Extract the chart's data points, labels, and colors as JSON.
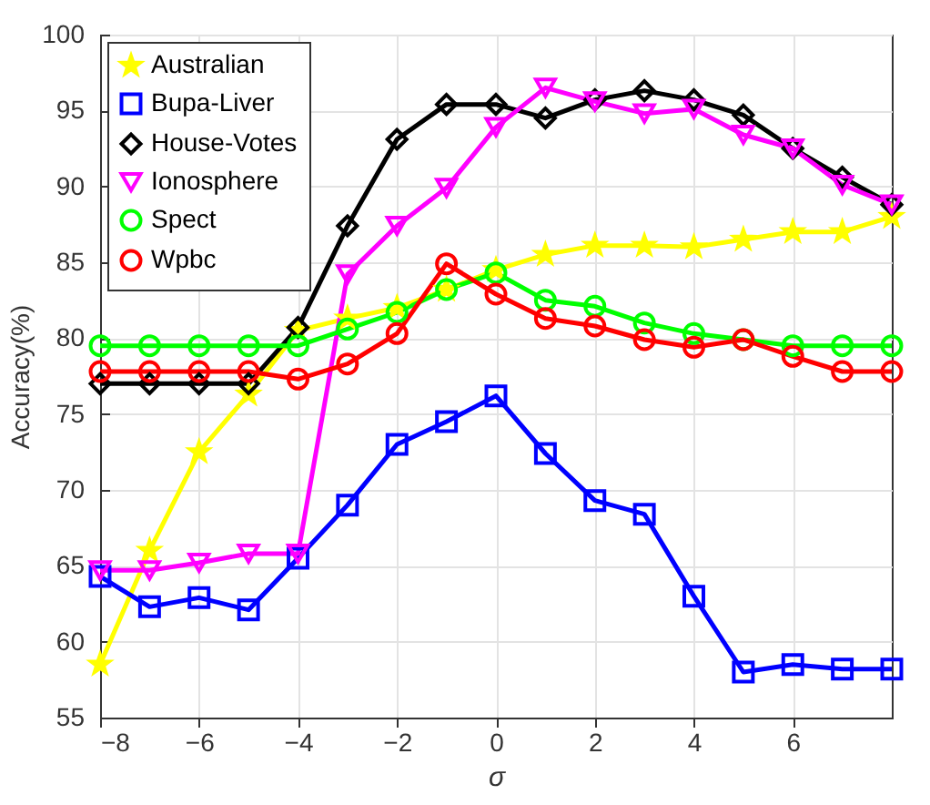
{
  "chart_data": {
    "type": "line",
    "xlabel": "σ",
    "ylabel": "Accuracy(%)",
    "x": [
      -8,
      -7,
      -6,
      -5,
      -4,
      -3,
      -2,
      -1,
      0,
      1,
      2,
      3,
      4,
      5,
      6,
      7,
      8
    ],
    "xlim": [
      -8,
      8
    ],
    "xticks": [
      -8,
      -6,
      -4,
      -2,
      0,
      2,
      4,
      6
    ],
    "ylim": [
      55,
      100
    ],
    "yticks": [
      55,
      60,
      65,
      70,
      75,
      80,
      85,
      90,
      95,
      100
    ],
    "grid": true,
    "legend": "top left",
    "line_style": "solid",
    "series": [
      {
        "name": "Australian",
        "color": "#ffff00",
        "marker": "star",
        "values": [
          58.5,
          66,
          72.5,
          76.3,
          80.5,
          81.3,
          82,
          83.2,
          84.5,
          85.5,
          86.1,
          86.1,
          86,
          86.5,
          87,
          87,
          88
        ]
      },
      {
        "name": "Bupa-Liver",
        "color": "#0000ff",
        "marker": "square",
        "values": [
          64.3,
          62.3,
          62.9,
          62.1,
          65.5,
          69,
          73,
          74.5,
          76.2,
          72.4,
          69.3,
          68.4,
          63,
          58,
          58.5,
          58.2,
          58.2
        ]
      },
      {
        "name": "House-Votes",
        "color": "#000000",
        "marker": "diamond",
        "values": [
          77,
          77,
          77,
          77,
          80.7,
          87.4,
          93.1,
          95.4,
          95.4,
          94.5,
          95.7,
          96.3,
          95.7,
          94.7,
          92.5,
          90.6,
          88.8
        ]
      },
      {
        "name": "Ionosphere",
        "color": "#ff00ff",
        "marker": "triangle",
        "values": [
          64.7,
          64.7,
          65.2,
          65.8,
          65.8,
          84.2,
          87.4,
          89.9,
          93.9,
          96.5,
          95.6,
          94.8,
          95.1,
          93.4,
          92.5,
          90.1,
          88.8
        ]
      },
      {
        "name": "Spect",
        "color": "#00ff00",
        "marker": "circle",
        "values": [
          79.5,
          79.5,
          79.5,
          79.5,
          79.5,
          80.6,
          81.7,
          83.2,
          84.3,
          82.5,
          82.1,
          81,
          80.3,
          79.9,
          79.5,
          79.5,
          79.5
        ]
      },
      {
        "name": "Wpbc",
        "color": "#ff0000",
        "marker": "circle",
        "values": [
          77.8,
          77.8,
          77.8,
          77.8,
          77.3,
          78.3,
          80.3,
          84.9,
          82.9,
          81.3,
          80.8,
          79.9,
          79.4,
          79.9,
          78.8,
          77.8,
          77.8
        ]
      }
    ]
  }
}
